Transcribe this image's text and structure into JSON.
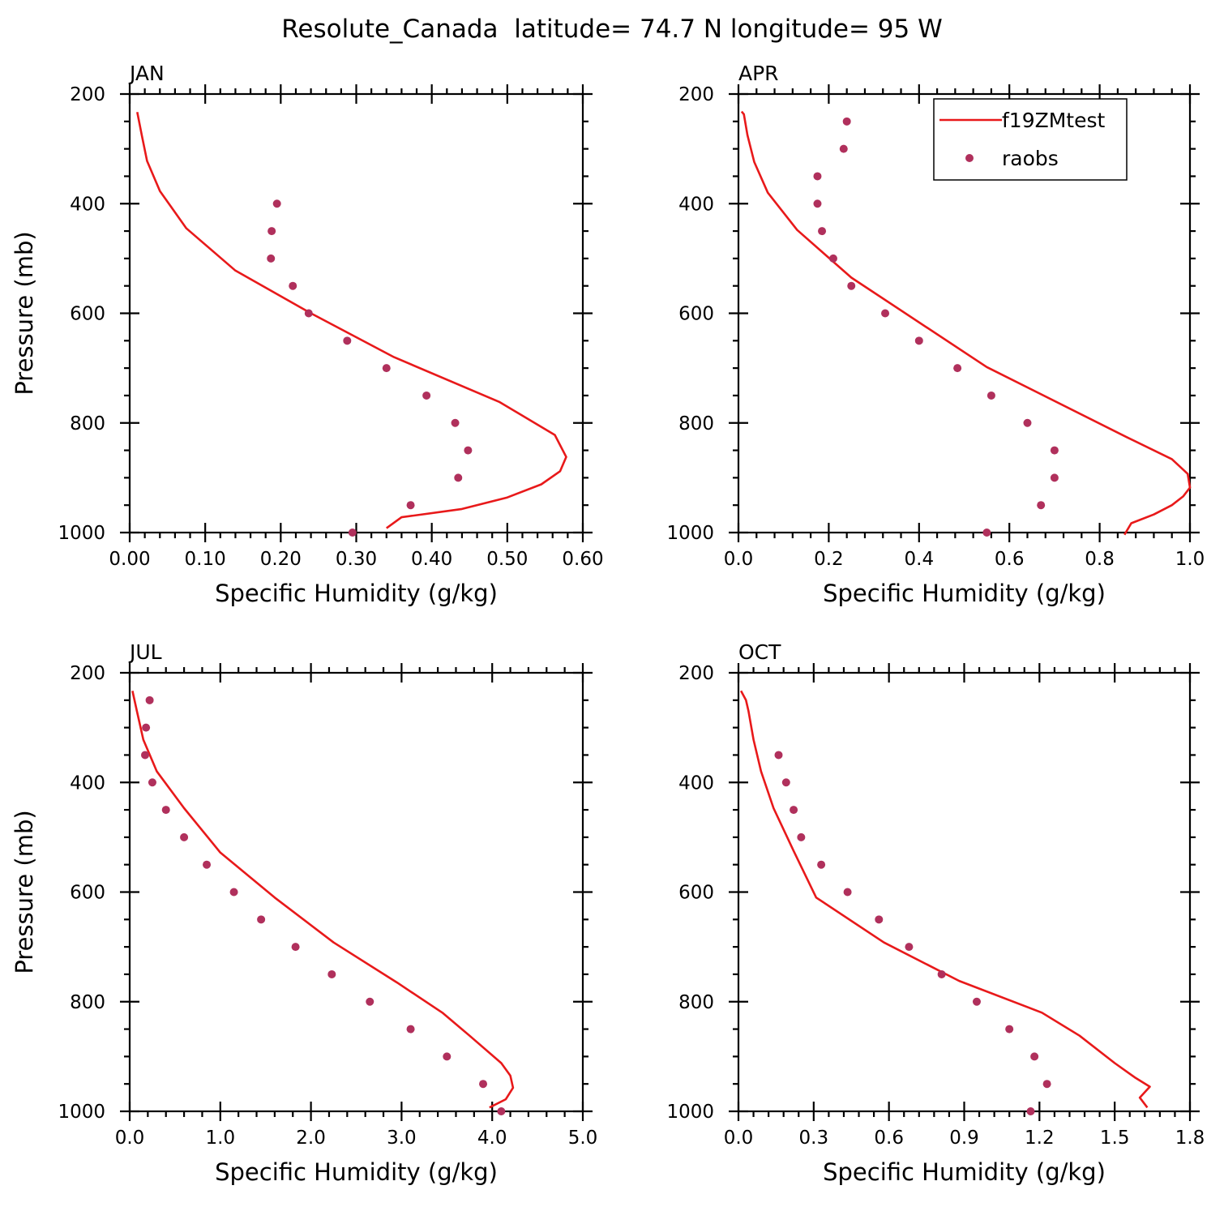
{
  "figure": {
    "title": "Resolute_Canada  latitude= 74.7 N longitude= 95 W"
  },
  "legend": {
    "location": "top-right of APR panel",
    "model_label": "f19ZMtest",
    "obs_label": "raobs"
  },
  "colors": {
    "model_line": "#e8191a",
    "obs_marker": "#b0305c",
    "axes": "#000000"
  },
  "chart_data": [
    {
      "type": "line",
      "panel": "JAN",
      "title": "JAN",
      "xlabel": "Specific Humidity (g/kg)",
      "ylabel": "Pressure (mb)",
      "xlim": [
        0,
        0.6
      ],
      "ylim": [
        1000,
        200
      ],
      "y_inverted": true,
      "x_ticks": [
        0,
        0.1,
        0.2,
        0.3,
        0.4,
        0.5,
        0.6
      ],
      "x_tick_labels": [
        "0.00",
        "0.10",
        "0.20",
        "0.30",
        "0.40",
        "0.50",
        "0.60"
      ],
      "y_ticks": [
        200,
        400,
        600,
        800,
        1000
      ],
      "y_tick_labels": [
        "200",
        "400",
        "600",
        "800",
        "1000"
      ],
      "series": [
        {
          "name": "f19ZMtest",
          "kind": "line",
          "x": [
            0.34,
            0.36,
            0.44,
            0.5,
            0.545,
            0.57,
            0.578,
            0.563,
            0.49,
            0.35,
            0.24,
            0.14,
            0.075,
            0.04,
            0.023,
            0.016,
            0.01
          ],
          "y": [
            992,
            972,
            957,
            936,
            912,
            888,
            862,
            822,
            762,
            680,
            600,
            522,
            445,
            377,
            322,
            275,
            233
          ]
        },
        {
          "name": "raobs",
          "kind": "scatter",
          "x": [
            0.295,
            0.372,
            0.435,
            0.448,
            0.431,
            0.393,
            0.34,
            0.288,
            0.237,
            0.216,
            0.187,
            0.188,
            0.195
          ],
          "y": [
            1000,
            950,
            900,
            850,
            800,
            750,
            700,
            650,
            600,
            550,
            500,
            450,
            400
          ]
        }
      ]
    },
    {
      "type": "line",
      "panel": "APR",
      "title": "APR",
      "xlabel": "Specific Humidity (g/kg)",
      "ylabel": "",
      "xlim": [
        0,
        1.0
      ],
      "ylim": [
        1000,
        200
      ],
      "y_inverted": true,
      "x_ticks": [
        0,
        0.2,
        0.4,
        0.6,
        0.8,
        1.0
      ],
      "x_tick_labels": [
        "0.0",
        "0.2",
        "0.4",
        "0.6",
        "0.8",
        "1.0"
      ],
      "y_ticks": [
        200,
        400,
        600,
        800,
        1000
      ],
      "y_tick_labels": [
        "200",
        "400",
        "600",
        "800",
        "1000"
      ],
      "series": [
        {
          "name": "f19ZMtest",
          "kind": "line",
          "x": [
            0.855,
            0.87,
            0.92,
            0.96,
            0.985,
            1.0,
            0.995,
            0.96,
            0.86,
            0.55,
            0.25,
            0.13,
            0.065,
            0.035,
            0.02,
            0.012,
            0.007
          ],
          "y": [
            1004,
            983,
            967,
            950,
            934,
            918,
            893,
            866,
            826,
            698,
            535,
            448,
            380,
            324,
            275,
            237,
            232
          ]
        },
        {
          "name": "raobs",
          "kind": "scatter",
          "x": [
            0.55,
            0.67,
            0.7,
            0.7,
            0.64,
            0.56,
            0.485,
            0.4,
            0.325,
            0.25,
            0.21,
            0.185,
            0.175,
            0.175,
            0.233,
            0.24
          ],
          "y": [
            1000,
            950,
            900,
            850,
            800,
            750,
            700,
            650,
            600,
            550,
            500,
            450,
            400,
            350,
            300,
            250
          ]
        }
      ]
    },
    {
      "type": "line",
      "panel": "JUL",
      "title": "JUL",
      "xlabel": "Specific Humidity (g/kg)",
      "ylabel": "Pressure (mb)",
      "xlim": [
        0,
        5.0
      ],
      "ylim": [
        1000,
        200
      ],
      "y_inverted": true,
      "x_ticks": [
        0,
        1,
        2,
        3,
        4,
        5
      ],
      "x_tick_labels": [
        "0.0",
        "1.0",
        "2.0",
        "3.0",
        "4.0",
        "5.0"
      ],
      "y_ticks": [
        200,
        400,
        600,
        800,
        1000
      ],
      "y_tick_labels": [
        "200",
        "400",
        "600",
        "800",
        "1000"
      ],
      "series": [
        {
          "name": "f19ZMtest",
          "kind": "line",
          "x": [
            3.97,
            4.15,
            4.23,
            4.2,
            4.1,
            3.75,
            3.45,
            2.95,
            2.25,
            1.6,
            1.0,
            0.6,
            0.3,
            0.15,
            0.08,
            0.03
          ],
          "y": [
            993,
            978,
            957,
            935,
            912,
            862,
            820,
            765,
            692,
            610,
            528,
            447,
            380,
            322,
            270,
            233
          ]
        },
        {
          "name": "raobs",
          "kind": "scatter",
          "x": [
            4.1,
            3.9,
            3.5,
            3.1,
            2.65,
            2.23,
            1.83,
            1.45,
            1.15,
            0.85,
            0.6,
            0.4,
            0.25,
            0.17,
            0.18,
            0.22
          ],
          "y": [
            1000,
            950,
            900,
            850,
            800,
            750,
            700,
            650,
            600,
            550,
            500,
            450,
            400,
            350,
            300,
            250
          ]
        }
      ]
    },
    {
      "type": "line",
      "panel": "OCT",
      "title": "OCT",
      "xlabel": "Specific Humidity (g/kg)",
      "ylabel": "",
      "xlim": [
        0,
        1.8
      ],
      "ylim": [
        1000,
        200
      ],
      "y_inverted": true,
      "x_ticks": [
        0,
        0.3,
        0.6,
        0.9,
        1.2,
        1.5,
        1.8
      ],
      "x_tick_labels": [
        "0.0",
        "0.3",
        "0.6",
        "0.9",
        "1.2",
        "1.5",
        "1.8"
      ],
      "y_ticks": [
        200,
        400,
        600,
        800,
        1000
      ],
      "y_tick_labels": [
        "200",
        "400",
        "600",
        "800",
        "1000"
      ],
      "series": [
        {
          "name": "f19ZMtest",
          "kind": "line",
          "x": [
            1.63,
            1.6,
            1.64,
            1.58,
            1.5,
            1.36,
            1.21,
            0.88,
            0.58,
            0.31,
            0.22,
            0.14,
            0.09,
            0.06,
            0.04,
            0.03,
            0.01
          ],
          "y": [
            993,
            975,
            955,
            938,
            912,
            862,
            820,
            762,
            692,
            610,
            525,
            447,
            380,
            322,
            270,
            250,
            233
          ]
        },
        {
          "name": "raobs",
          "kind": "scatter",
          "x": [
            1.165,
            1.23,
            1.18,
            1.08,
            0.95,
            0.81,
            0.68,
            0.56,
            0.435,
            0.33,
            0.25,
            0.22,
            0.19,
            0.16
          ],
          "y": [
            1000,
            950,
            900,
            850,
            800,
            750,
            700,
            650,
            600,
            550,
            500,
            450,
            400,
            350
          ]
        }
      ]
    }
  ]
}
